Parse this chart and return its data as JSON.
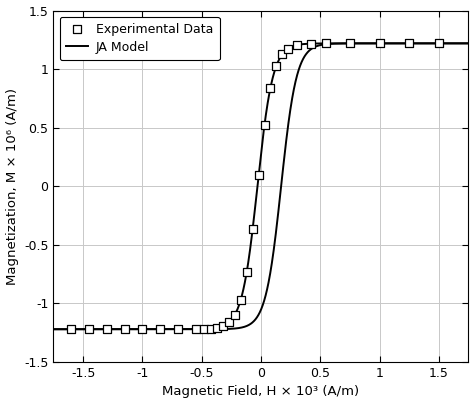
{
  "title": "",
  "xlabel": "Magnetic Field, H × 10³ (A/m)",
  "ylabel": "Magnetization, M × 10⁶ (A/m)",
  "xlim": [
    -1.75,
    1.75
  ],
  "ylim": [
    -1.5,
    1.5
  ],
  "xticks": [
    -1.5,
    -1.0,
    -0.5,
    0.0,
    0.5,
    1.0,
    1.5
  ],
  "yticks": [
    -1.5,
    -1.0,
    -0.5,
    0.0,
    0.5,
    1.0,
    1.5
  ],
  "Ms": 1.22,
  "background_color": "#ffffff",
  "line_color": "#000000",
  "marker_color": "#ffffff",
  "marker_edge_color": "#000000",
  "legend_exp": "Experimental Data",
  "legend_model": "JA Model",
  "grid_color": "#c8c8c8",
  "linewidth": 1.4,
  "marker_size": 28
}
